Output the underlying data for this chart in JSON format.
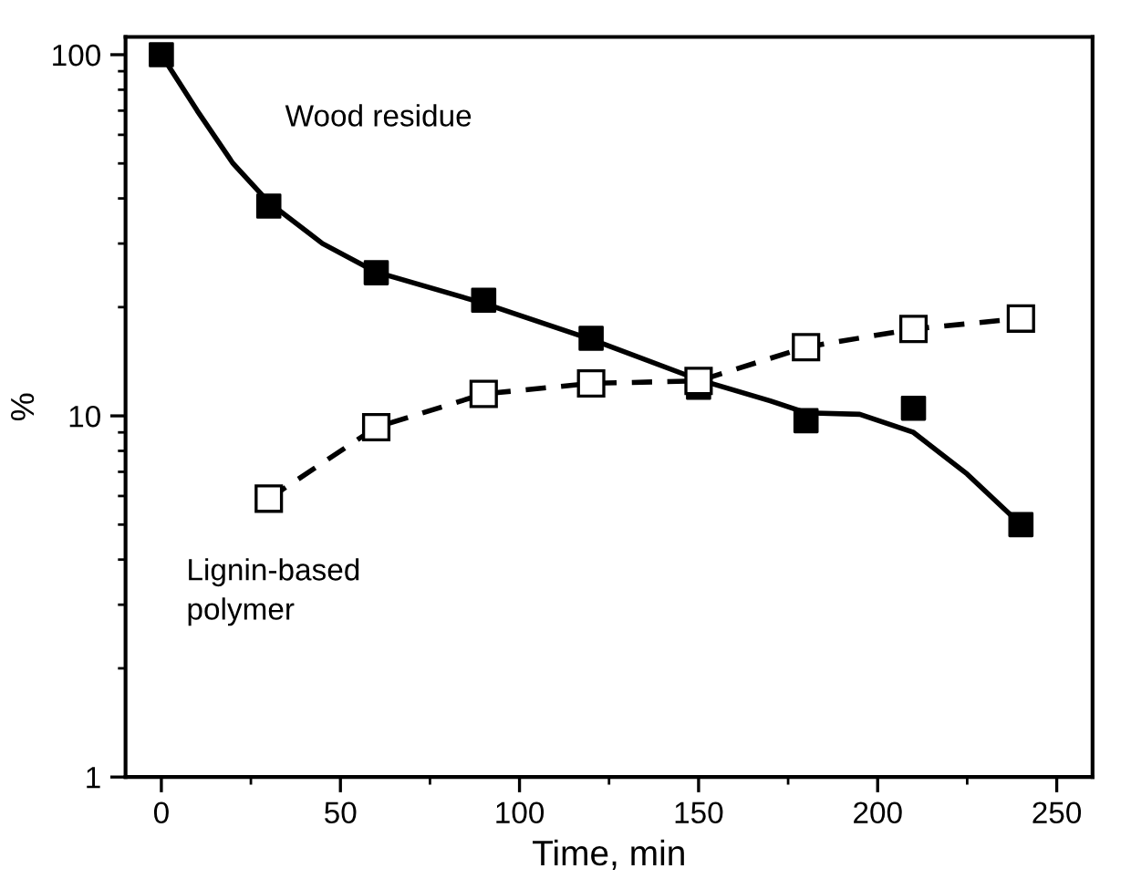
{
  "chart_data": {
    "type": "scatter",
    "xlabel": "Time, min",
    "ylabel": "%",
    "series": [
      {
        "color": "#000000",
        "x": [
          0,
          30,
          60,
          90,
          120,
          150,
          180,
          210,
          240
        ],
        "values": [
          100,
          38.1,
          24.9,
          20.9,
          16.4,
          12.0,
          9.7,
          10.5,
          5.0
        ]
      },
      {
        "type": "line",
        "color": "#000000",
        "line_style": "solid",
        "marker": "none",
        "x": [
          0,
          10,
          20,
          30,
          45,
          60,
          90,
          120,
          150,
          170,
          180,
          195,
          210,
          225,
          240
        ],
        "values": [
          100,
          70,
          50,
          39,
          30,
          25,
          20.5,
          16.3,
          12.6,
          11.0,
          10.2,
          10.1,
          9.0,
          6.9,
          5.0
        ]
      },
      {
        "type": "line",
        "color": "#000000",
        "line_style": "dashed",
        "marker": "square",
        "x": [
          30,
          60,
          90,
          120,
          150,
          180,
          210,
          240
        ],
        "values": [
          5.9,
          9.3,
          11.5,
          12.3,
          12.5,
          15.5,
          17.4,
          18.6
        ]
      }
    ],
    "marker": "square",
    "log": "y",
    "grid": false,
    "legend": false,
    "xlim": [
      -10,
      260
    ],
    "xticks": [
      0,
      50,
      100,
      150,
      200,
      250
    ],
    "ylim": [
      1,
      112
    ],
    "yticks": [
      1,
      10,
      100
    ],
    "annotations": [
      "Wood residue",
      "Lignin-based\npolymer"
    ]
  }
}
